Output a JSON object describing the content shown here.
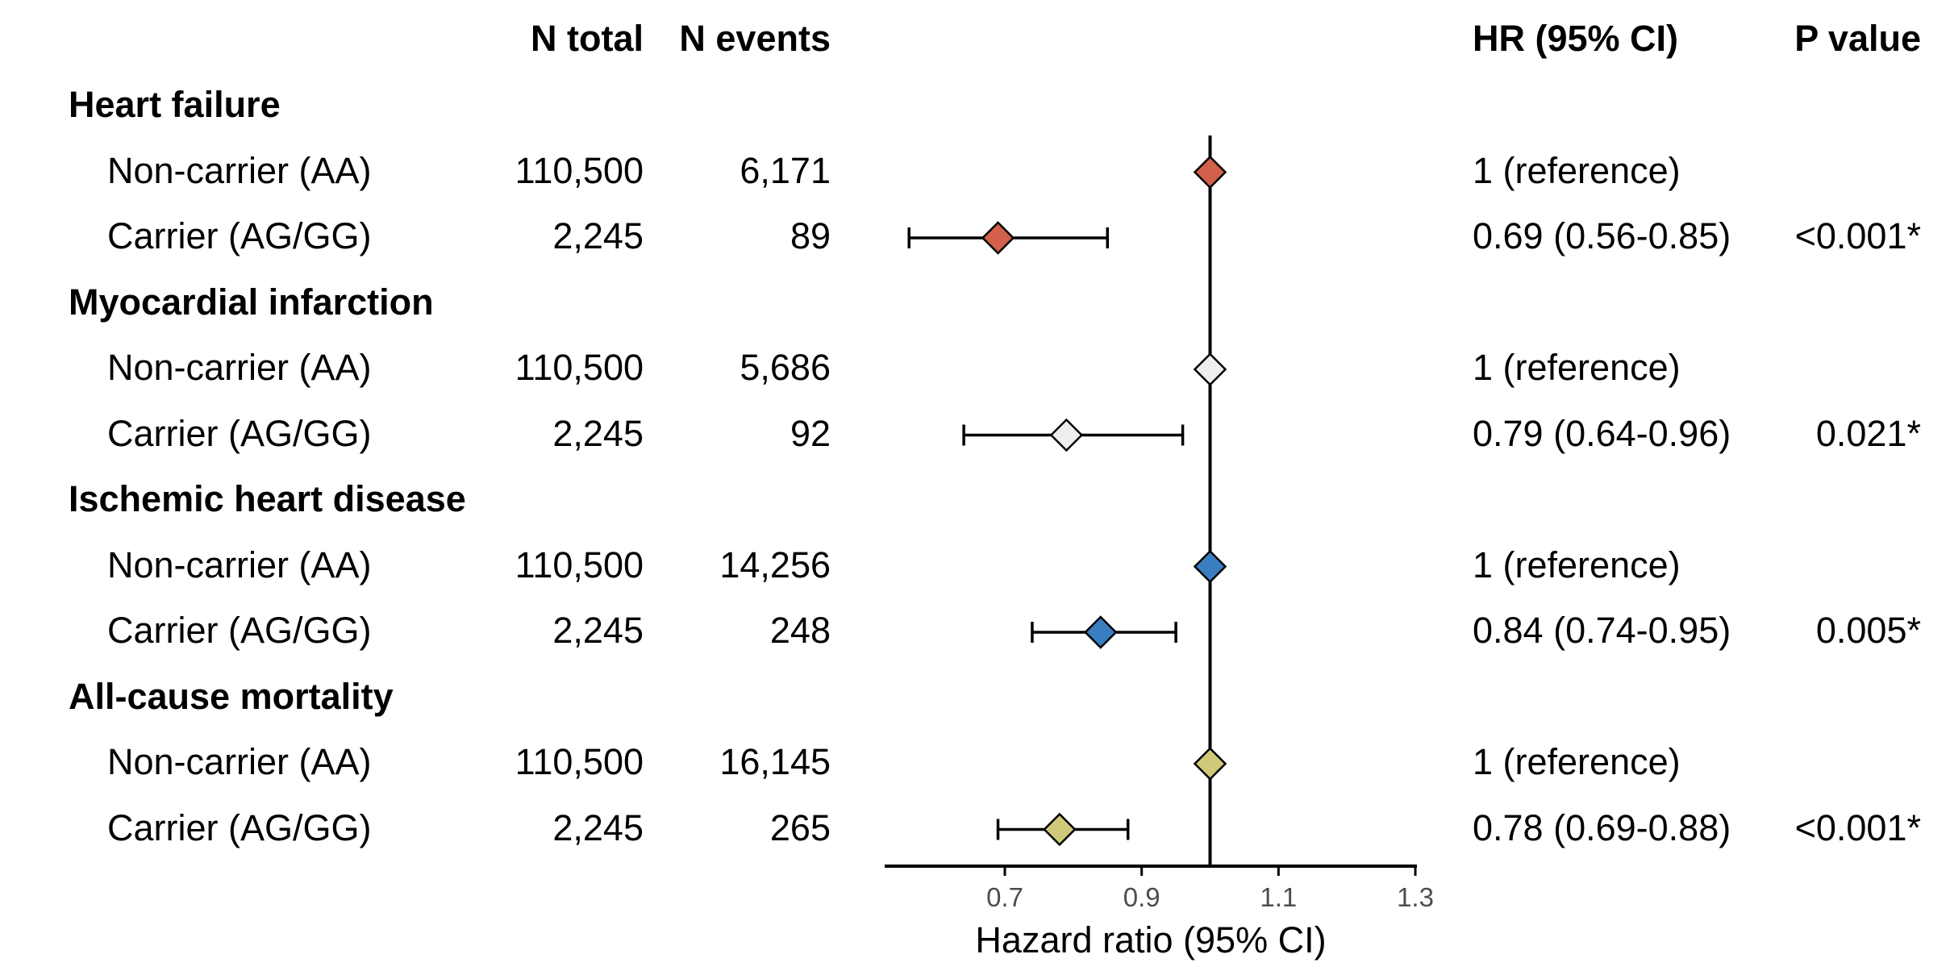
{
  "headers": {
    "n_total": "N total",
    "n_events": "N events",
    "hr": "HR (95% CI)",
    "p": "P value"
  },
  "groups": [
    {
      "title": "Heart failure",
      "color": "#D2604A",
      "rows": [
        {
          "label": "Non-carrier (AA)",
          "n_total": "110,500",
          "n_events": "6,171",
          "hr_text": "1 (reference)",
          "p": ""
        },
        {
          "label": "Carrier (AG/GG)",
          "n_total": "2,245",
          "n_events": "89",
          "hr_text": "0.69 (0.56-0.85)",
          "p": "<0.001*"
        }
      ]
    },
    {
      "title": "Myocardial infarction",
      "color": "#EEEEEE",
      "rows": [
        {
          "label": "Non-carrier (AA)",
          "n_total": "110,500",
          "n_events": "5,686",
          "hr_text": "1 (reference)",
          "p": ""
        },
        {
          "label": "Carrier (AG/GG)",
          "n_total": "2,245",
          "n_events": "92",
          "hr_text": "0.79 (0.64-0.96)",
          "p": "0.021*"
        }
      ]
    },
    {
      "title": "Ischemic heart disease",
      "color": "#3A7EC2",
      "rows": [
        {
          "label": "Non-carrier (AA)",
          "n_total": "110,500",
          "n_events": "14,256",
          "hr_text": "1 (reference)",
          "p": ""
        },
        {
          "label": "Carrier (AG/GG)",
          "n_total": "2,245",
          "n_events": "248",
          "hr_text": "0.84 (0.74-0.95)",
          "p": "0.005*"
        }
      ]
    },
    {
      "title": "All-cause mortality",
      "color": "#D1C97A",
      "rows": [
        {
          "label": "Non-carrier (AA)",
          "n_total": "110,500",
          "n_events": "16,145",
          "hr_text": "1 (reference)",
          "p": ""
        },
        {
          "label": "Carrier (AG/GG)",
          "n_total": "2,245",
          "n_events": "265",
          "hr_text": "0.78 (0.69-0.88)",
          "p": "<0.001*"
        }
      ]
    }
  ],
  "chart_data": {
    "type": "forest",
    "xlabel": "Hazard ratio (95% CI)",
    "xlim": [
      0.5,
      1.34
    ],
    "xticks": [
      0.7,
      0.9,
      1.1,
      1.3
    ],
    "tick_labels": [
      "0.7",
      "0.9",
      "1.1",
      "1.3"
    ],
    "reference_line": 1.0,
    "series": [
      {
        "name": "Heart failure",
        "points": [
          {
            "label": "Non-carrier (AA)",
            "hr": 1.0,
            "lo": null,
            "hi": null
          },
          {
            "label": "Carrier (AG/GG)",
            "hr": 0.69,
            "lo": 0.56,
            "hi": 0.85
          }
        ]
      },
      {
        "name": "Myocardial infarction",
        "points": [
          {
            "label": "Non-carrier (AA)",
            "hr": 1.0,
            "lo": null,
            "hi": null
          },
          {
            "label": "Carrier (AG/GG)",
            "hr": 0.79,
            "lo": 0.64,
            "hi": 0.96
          }
        ]
      },
      {
        "name": "Ischemic heart disease",
        "points": [
          {
            "label": "Non-carrier (AA)",
            "hr": 1.0,
            "lo": null,
            "hi": null
          },
          {
            "label": "Carrier (AG/GG)",
            "hr": 0.84,
            "lo": 0.74,
            "hi": 0.95
          }
        ]
      },
      {
        "name": "All-cause mortality",
        "points": [
          {
            "label": "Non-carrier (AA)",
            "hr": 1.0,
            "lo": null,
            "hi": null
          },
          {
            "label": "Carrier (AG/GG)",
            "hr": 0.78,
            "lo": 0.69,
            "hi": 0.88
          }
        ]
      }
    ]
  }
}
